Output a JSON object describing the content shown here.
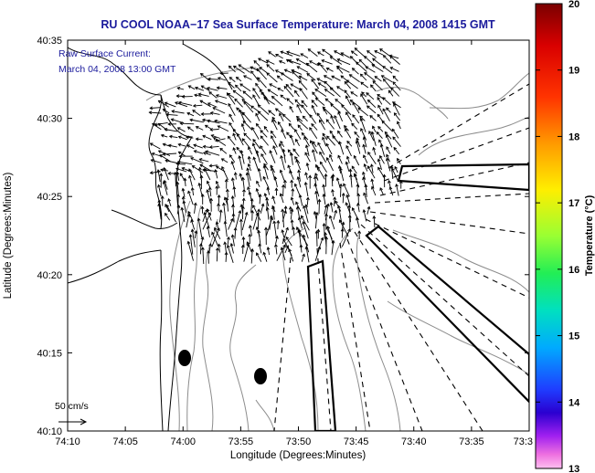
{
  "chart_data": {
    "type": "vector-field",
    "title": "RU COOL  NOAA−17  Sea Surface Temperature:  March 04, 2008 1415 GMT",
    "annotation": [
      "Raw Surface Current:",
      "March 04, 2008 13:00 GMT"
    ],
    "xlabel": "Longitude (Degrees:Minutes)",
    "ylabel": "Latitude (Degrees:Minutes)",
    "x_ticks": [
      "74:10",
      "74:05",
      "74:00",
      "73:55",
      "73:50",
      "73:45",
      "73:40",
      "73:35",
      "73:3"
    ],
    "y_ticks": [
      "40:35",
      "40:30",
      "40:25",
      "40:20",
      "40:15",
      "40:10"
    ],
    "xlim": [
      -74.1667,
      -73.5
    ],
    "ylim": [
      40.1667,
      40.5833
    ],
    "scale_label": "50 cm/s",
    "colorbar": {
      "label": "Temperature (°C)",
      "min": 13,
      "max": 20,
      "ticks": [
        "20",
        "19",
        "18",
        "17",
        "16",
        "15",
        "14",
        "13"
      ]
    },
    "colors": {
      "title": "#1a1a9c",
      "annotation": "#1a1a9c",
      "axis": "#000000",
      "coast": "#000000",
      "contour": "#8c8c8c"
    }
  }
}
